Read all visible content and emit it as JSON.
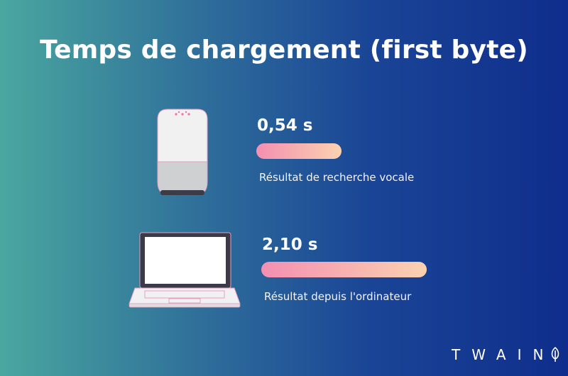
{
  "chart_data": {
    "type": "bar",
    "orientation": "horizontal",
    "title": "Temps de chargement (first byte)",
    "unit": "s",
    "categories": [
      "Résultat de recherche vocale",
      "Résultat depuis l'ordinateur"
    ],
    "values": [
      0.54,
      2.1
    ],
    "value_labels": [
      "0,54 s",
      "2,10 s"
    ],
    "icons": [
      "smart-speaker-icon",
      "laptop-icon"
    ],
    "bar_gradient": [
      "#f48fb1",
      "#fbd2b0"
    ]
  },
  "brand": {
    "text": "TWAIN",
    "icon": "leaf-icon"
  },
  "colors": {
    "background_left": "#4aa79f",
    "background_right": "#0f2d8c"
  }
}
